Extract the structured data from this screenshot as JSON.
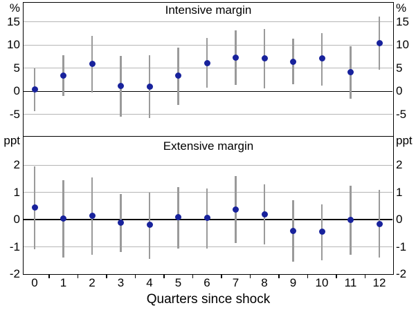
{
  "figure": {
    "xlabel": "Quarters since shock",
    "colors": {
      "dot": "#18229c",
      "error_bar": "#9a9a9a",
      "gridline": "#b5b5b5",
      "zero_line": "#000000",
      "frame": "#000000",
      "background": "#ffffff"
    }
  },
  "chart_data": [
    {
      "type": "scatter",
      "title": "Intensive margin",
      "unit_left": "%",
      "unit_right": "%",
      "x": [
        0,
        1,
        2,
        3,
        4,
        5,
        6,
        7,
        8,
        9,
        10,
        11,
        12
      ],
      "series": [
        {
          "name": "point estimate",
          "values": [
            0.4,
            3.4,
            5.9,
            1.2,
            1.0,
            3.4,
            6.1,
            7.3,
            7.1,
            6.4,
            7.1,
            4.1,
            10.4
          ]
        },
        {
          "name": "confidence interval lower",
          "values": [
            -4.3,
            -1.0,
            -0.2,
            -5.4,
            -5.7,
            -2.9,
            0.8,
            1.4,
            0.6,
            1.5,
            1.3,
            -1.6,
            4.6
          ]
        },
        {
          "name": "confidence interval upper",
          "values": [
            5.0,
            7.8,
            12.0,
            7.6,
            7.8,
            9.4,
            11.6,
            13.2,
            13.5,
            11.4,
            12.6,
            9.8,
            16.2
          ]
        }
      ],
      "ylim": [
        -9.65,
        19.3
      ],
      "yticks": [
        -5,
        0,
        5,
        10,
        15
      ],
      "grid": true,
      "zero_line": true,
      "legend": "none"
    },
    {
      "type": "scatter",
      "title": "Extensive margin",
      "unit_left": "ppt",
      "unit_right": "ppt",
      "x": [
        0,
        1,
        2,
        3,
        4,
        5,
        6,
        7,
        8,
        9,
        10,
        11,
        12
      ],
      "series": [
        {
          "name": "point estimate",
          "values": [
            0.45,
            0.03,
            0.13,
            -0.1,
            -0.2,
            0.1,
            0.07,
            0.38,
            0.2,
            -0.42,
            -0.45,
            0.0,
            -0.15
          ]
        },
        {
          "name": "confidence interval lower",
          "values": [
            -1.1,
            -1.4,
            -1.3,
            -1.2,
            -1.45,
            -1.05,
            -1.05,
            -0.85,
            -0.9,
            -1.55,
            -1.5,
            -1.3,
            -1.4
          ]
        },
        {
          "name": "confidence interval upper",
          "values": [
            1.95,
            1.45,
            1.55,
            0.95,
            1.0,
            1.2,
            1.15,
            1.6,
            1.3,
            0.7,
            0.55,
            1.25,
            1.1
          ]
        }
      ],
      "ylim": [
        -2.0,
        3.07
      ],
      "yticks": [
        -2,
        -1,
        0,
        1,
        2
      ],
      "grid": true,
      "zero_line": true,
      "legend": "none"
    }
  ]
}
